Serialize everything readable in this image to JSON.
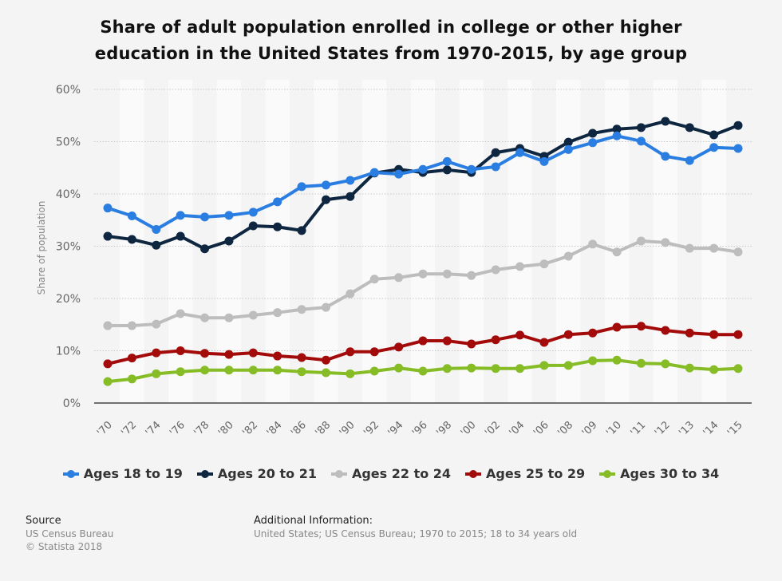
{
  "chart_data": {
    "type": "line",
    "title": "Share of adult population enrolled in college or other higher education in the United States from 1970-2015, by age group",
    "title_lines": [
      "Share of adult population enrolled in college or other higher",
      "education in the United States from 1970-2015, by age group"
    ],
    "xlabel": "",
    "ylabel": "Share of population",
    "ylim": [
      0,
      60
    ],
    "yticks": [
      0,
      10,
      20,
      30,
      40,
      50,
      60
    ],
    "ytick_labels": [
      "0%",
      "10%",
      "20%",
      "30%",
      "40%",
      "50%",
      "60%"
    ],
    "grid": true,
    "legend_position": "bottom",
    "categories": [
      "'70",
      "'72",
      "'74",
      "'76",
      "'78",
      "'80",
      "'82",
      "'84",
      "'86",
      "'88",
      "'90",
      "'92",
      "'94",
      "'96",
      "'98",
      "'00",
      "'02",
      "'04",
      "'06",
      "'08",
      "'09",
      "'10",
      "'11",
      "'12",
      "'13",
      "'14",
      "'15"
    ],
    "series": [
      {
        "name": "Ages 18 to 19",
        "color": "#2a7de1",
        "values": [
          37.3,
          35.8,
          33.2,
          35.9,
          35.6,
          35.9,
          36.5,
          38.5,
          41.4,
          41.7,
          42.6,
          44.1,
          43.8,
          44.7,
          46.2,
          44.7,
          45.2,
          47.9,
          46.2,
          48.5,
          49.8,
          51.1,
          50.1,
          47.2,
          46.4,
          48.9,
          48.7
        ]
      },
      {
        "name": "Ages 20 to 21",
        "color": "#0e2640",
        "values": [
          31.9,
          31.3,
          30.2,
          31.9,
          29.5,
          31.0,
          33.9,
          33.7,
          33.0,
          38.9,
          39.5,
          44.0,
          44.7,
          44.1,
          44.6,
          44.1,
          47.9,
          48.7,
          47.2,
          49.9,
          51.6,
          52.4,
          52.7,
          53.9,
          52.7,
          51.3,
          53.1
        ]
      },
      {
        "name": "Ages 22 to 24",
        "color": "#bdbdbd",
        "values": [
          14.8,
          14.8,
          15.1,
          17.1,
          16.3,
          16.3,
          16.8,
          17.3,
          17.9,
          18.3,
          20.9,
          23.7,
          24.0,
          24.7,
          24.7,
          24.4,
          25.5,
          26.1,
          26.6,
          28.1,
          30.4,
          28.9,
          31.0,
          30.7,
          29.6,
          29.6,
          28.9
        ]
      },
      {
        "name": "Ages 25 to 29",
        "color": "#a30b0b",
        "values": [
          7.5,
          8.6,
          9.6,
          10.0,
          9.5,
          9.3,
          9.6,
          9.0,
          8.7,
          8.2,
          9.8,
          9.8,
          10.7,
          11.9,
          11.9,
          11.3,
          12.1,
          13.0,
          11.6,
          13.1,
          13.4,
          14.5,
          14.7,
          13.9,
          13.4,
          13.1,
          13.1
        ]
      },
      {
        "name": "Ages 30 to 34",
        "color": "#86bc25",
        "values": [
          4.1,
          4.6,
          5.6,
          6.0,
          6.3,
          6.3,
          6.3,
          6.3,
          6.0,
          5.8,
          5.6,
          6.1,
          6.7,
          6.1,
          6.6,
          6.7,
          6.6,
          6.6,
          7.2,
          7.2,
          8.1,
          8.2,
          7.6,
          7.5,
          6.7,
          6.4,
          6.6
        ]
      }
    ]
  },
  "footer": {
    "source_heading": "Source",
    "source_lines": [
      "US Census Bureau",
      "© Statista 2018"
    ],
    "info_heading": "Additional Information:",
    "info_text": "United States; US Census Bureau; 1970 to 2015; 18 to 34 years old"
  }
}
